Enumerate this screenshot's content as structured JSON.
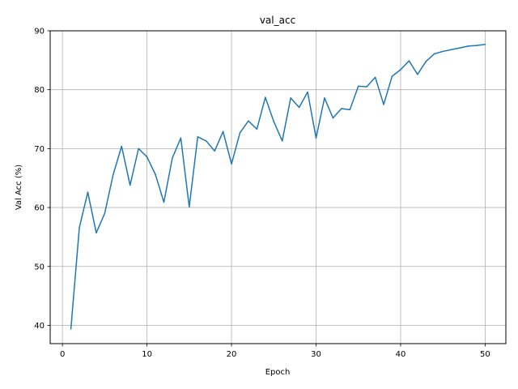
{
  "chart_data": {
    "type": "line",
    "title": "val_acc",
    "xlabel": "Epoch",
    "ylabel": "Val Acc (%)",
    "xlim": [
      -1.45,
      52.45
    ],
    "ylim": [
      36.9,
      90.0
    ],
    "xticks": [
      0,
      10,
      20,
      30,
      40,
      50
    ],
    "yticks": [
      40,
      50,
      60,
      70,
      80,
      90
    ],
    "grid": true,
    "line_color": "#1f77b4",
    "series": [
      {
        "x": [
          1,
          2,
          3,
          4,
          5,
          6,
          7,
          8,
          9,
          10,
          11,
          12,
          13,
          14,
          15,
          16,
          17,
          18,
          19,
          20,
          21,
          22,
          23,
          24,
          25,
          26,
          27,
          28,
          29,
          30,
          31,
          32,
          33,
          34,
          35,
          36,
          37,
          38,
          39,
          40,
          41,
          42,
          43,
          44,
          45,
          46,
          47,
          48,
          49,
          50
        ],
        "values": [
          39.4,
          56.6,
          62.6,
          55.7,
          59.0,
          65.6,
          70.4,
          63.8,
          70.0,
          68.6,
          65.6,
          60.9,
          68.4,
          71.8,
          60.1,
          72.0,
          71.3,
          69.6,
          72.9,
          67.4,
          72.7,
          74.7,
          73.3,
          78.7,
          74.6,
          71.3,
          78.6,
          77.0,
          79.6,
          71.8,
          78.6,
          75.2,
          76.8,
          76.6,
          80.6,
          80.5,
          82.1,
          77.5,
          82.3,
          83.4,
          84.9,
          82.6,
          84.8,
          86.1,
          86.5,
          86.8,
          87.1,
          87.4,
          87.5,
          87.7
        ]
      }
    ]
  }
}
